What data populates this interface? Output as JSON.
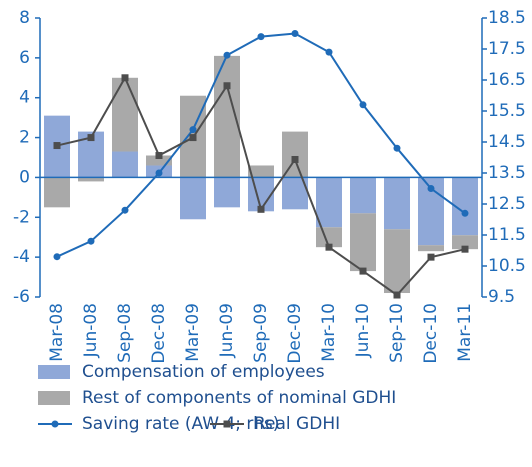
{
  "chart_data": {
    "type": "bar-line",
    "categories": [
      "Mar-08",
      "Jun-08",
      "Sep-08",
      "Dec-08",
      "Mar-09",
      "Jun-09",
      "Sep-09",
      "Dec-09",
      "Mar-10",
      "Jun-10",
      "Sep-10",
      "Dec-10",
      "Mar-11"
    ],
    "series": [
      {
        "name": "Compensation of employees",
        "type": "bar",
        "color": "#8fa8d8",
        "values": [
          3.1,
          2.3,
          1.3,
          0.6,
          -2.1,
          -1.5,
          -1.7,
          -1.6,
          -2.5,
          -1.8,
          -2.6,
          -3.4,
          -2.9
        ]
      },
      {
        "name": "Rest of components of nominal GDHI",
        "type": "bar",
        "color": "#a9a9a9",
        "values": [
          -1.5,
          -0.2,
          3.7,
          0.5,
          4.1,
          6.1,
          0.6,
          2.3,
          -1.0,
          -2.9,
          -3.2,
          -0.3,
          -0.7
        ]
      },
      {
        "name": "Saving rate (AW 4; rhs)",
        "type": "line",
        "axis": "y2",
        "color": "#1f6bb8",
        "marker": "circle",
        "values": [
          10.8,
          11.3,
          12.3,
          13.5,
          14.9,
          17.3,
          17.9,
          18.0,
          17.4,
          15.7,
          14.3,
          13.0,
          12.2
        ]
      },
      {
        "name": "Real GDHI",
        "type": "line",
        "color": "#4d4d4d",
        "marker": "square",
        "values": [
          1.6,
          2.0,
          5.0,
          1.1,
          2.0,
          4.6,
          -1.6,
          0.9,
          -3.5,
          -4.7,
          -5.9,
          -4.0,
          -3.6
        ]
      }
    ],
    "ylim": [
      -6,
      8
    ],
    "yticks": [
      -6,
      -4,
      -2,
      0,
      2,
      4,
      6,
      8
    ],
    "y2lim": [
      9.5,
      18.5
    ],
    "y2ticks": [
      9.5,
      10.5,
      11.5,
      12.5,
      13.5,
      14.5,
      15.5,
      16.5,
      17.5,
      18.5
    ],
    "legend": "bottom"
  }
}
